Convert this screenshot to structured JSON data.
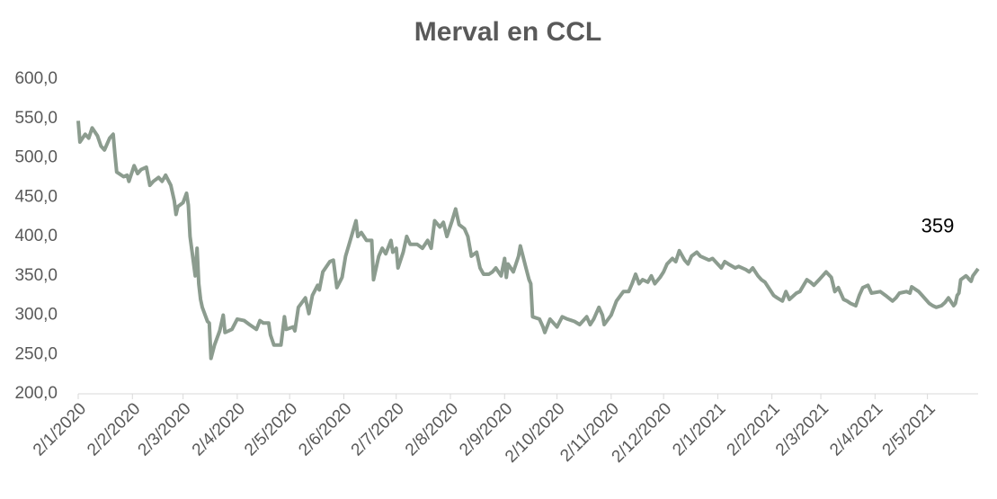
{
  "chart_data": {
    "type": "line",
    "title": "Merval en CCL",
    "x": [
      "2/1/2020",
      "3/1/2020",
      "6/1/2020",
      "8/1/2020",
      "10/1/2020",
      "13/1/2020",
      "15/1/2020",
      "17/1/2020",
      "20/1/2020",
      "22/1/2020",
      "23/1/2020",
      "24/1/2020",
      "28/1/2020",
      "30/1/2020",
      "31/1/2020",
      "3/2/2020",
      "5/2/2020",
      "7/2/2020",
      "10/2/2020",
      "12/2/2020",
      "14/2/2020",
      "17/2/2020",
      "19/2/2020",
      "21/2/2020",
      "24/2/2020",
      "26/2/2020",
      "27/2/2020",
      "28/2/2020",
      "2/3/2020",
      "4/3/2020",
      "5/3/2020",
      "6/3/2020",
      "9/3/2020",
      "10/3/2020",
      "11/3/2020",
      "12/3/2020",
      "13/3/2020",
      "16/3/2020",
      "17/3/2020",
      "18/3/2020",
      "20/3/2020",
      "23/3/2020",
      "25/3/2020",
      "26/3/2020",
      "30/3/2020",
      "2/4/2020",
      "6/4/2020",
      "9/4/2020",
      "13/4/2020",
      "15/4/2020",
      "17/4/2020",
      "20/4/2020",
      "21/4/2020",
      "23/4/2020",
      "27/4/2020",
      "29/4/2020",
      "30/4/2020",
      "4/5/2020",
      "5/5/2020",
      "7/5/2020",
      "11/5/2020",
      "13/5/2020",
      "15/5/2020",
      "18/5/2020",
      "19/5/2020",
      "21/5/2020",
      "25/5/2020",
      "27/5/2020",
      "29/5/2020",
      "1/6/2020",
      "3/6/2020",
      "5/6/2020",
      "9/6/2020",
      "10/6/2020",
      "12/6/2020",
      "15/6/2020",
      "18/6/2020",
      "19/6/2020",
      "22/6/2020",
      "24/6/2020",
      "26/6/2020",
      "29/6/2020",
      "30/6/2020",
      "2/7/2020",
      "3/7/2020",
      "6/7/2020",
      "8/7/2020",
      "10/7/2020",
      "14/7/2020",
      "17/7/2020",
      "20/7/2020",
      "22/7/2020",
      "24/7/2020",
      "27/7/2020",
      "29/7/2020",
      "31/7/2020",
      "3/8/2020",
      "5/8/2020",
      "7/8/2020",
      "10/8/2020",
      "12/8/2020",
      "14/8/2020",
      "17/8/2020",
      "19/8/2020",
      "21/8/2020",
      "24/8/2020",
      "26/8/2020",
      "28/8/2020",
      "31/8/2020",
      "2/9/2020",
      "3/9/2020",
      "4/9/2020",
      "7/9/2020",
      "10/9/2020",
      "11/9/2020",
      "14/9/2020",
      "16/9/2020",
      "17/9/2020",
      "18/9/2020",
      "22/9/2020",
      "24/9/2020",
      "25/9/2020",
      "28/9/2020",
      "30/9/2020",
      "2/10/2020",
      "5/10/2020",
      "8/10/2020",
      "12/10/2020",
      "15/10/2020",
      "19/10/2020",
      "21/10/2020",
      "23/10/2020",
      "26/10/2020",
      "28/10/2020",
      "29/10/2020",
      "2/11/2020",
      "5/11/2020",
      "9/11/2020",
      "12/11/2020",
      "14/11/2020",
      "16/11/2020",
      "18/11/2020",
      "20/11/2020",
      "23/11/2020",
      "25/11/2020",
      "27/11/2020",
      "30/11/2020",
      "2/12/2020",
      "4/12/2020",
      "7/12/2020",
      "9/12/2020",
      "11/12/2020",
      "14/12/2020",
      "16/12/2020",
      "18/12/2020",
      "21/12/2020",
      "23/12/2020",
      "28/12/2020",
      "30/12/2020",
      "4/1/2021",
      "6/1/2021",
      "8/1/2021",
      "12/1/2021",
      "14/1/2021",
      "18/1/2021",
      "20/1/2021",
      "22/1/2021",
      "25/1/2021",
      "27/1/2021",
      "29/1/2021",
      "3/2/2021",
      "5/2/2021",
      "8/2/2021",
      "10/2/2021",
      "12/2/2021",
      "16/2/2021",
      "18/2/2021",
      "22/2/2021",
      "24/2/2021",
      "26/2/2021",
      "1/3/2021",
      "3/3/2021",
      "5/3/2021",
      "8/3/2021",
      "10/3/2021",
      "12/3/2021",
      "15/3/2021",
      "17/3/2021",
      "19/3/2021",
      "22/3/2021",
      "24/3/2021",
      "26/3/2021",
      "29/3/2021",
      "31/3/2021",
      "5/4/2021",
      "8/4/2021",
      "12/4/2021",
      "14/4/2021",
      "16/4/2021",
      "20/4/2021",
      "22/4/2021",
      "23/4/2021",
      "27/4/2021",
      "29/4/2021",
      "3/5/2021",
      "5/5/2021",
      "7/5/2021",
      "10/5/2021",
      "12/5/2021",
      "14/5/2021",
      "17/5/2021",
      "18/5/2021",
      "19/5/2021",
      "20/5/2021",
      "21/5/2021",
      "24/5/2021",
      "25/5/2021",
      "26/5/2021",
      "27/5/2021",
      "28/5/2021",
      "31/5/2021"
    ],
    "series": [
      {
        "name": "Merval en CCL",
        "color": "#8c9c8f",
        "values": [
          547,
          520,
          530,
          525,
          538,
          528,
          515,
          510,
          525,
          530,
          505,
          482,
          476,
          478,
          470,
          490,
          480,
          485,
          488,
          465,
          470,
          475,
          470,
          478,
          465,
          445,
          428,
          438,
          443,
          455,
          440,
          400,
          350,
          385,
          340,
          320,
          310,
          292,
          290,
          245,
          262,
          280,
          300,
          278,
          282,
          295,
          293,
          288,
          282,
          293,
          290,
          290,
          275,
          262,
          262,
          298,
          282,
          285,
          280,
          310,
          322,
          302,
          325,
          338,
          332,
          355,
          368,
          370,
          335,
          348,
          375,
          390,
          420,
          400,
          405,
          395,
          395,
          345,
          375,
          385,
          378,
          395,
          380,
          385,
          360,
          380,
          400,
          390,
          390,
          385,
          395,
          385,
          420,
          412,
          418,
          400,
          420,
          435,
          415,
          410,
          400,
          375,
          380,
          360,
          352,
          352,
          355,
          360,
          350,
          372,
          348,
          365,
          355,
          375,
          388,
          362,
          345,
          340,
          298,
          295,
          285,
          278,
          295,
          290,
          285,
          298,
          295,
          292,
          288,
          298,
          288,
          295,
          310,
          300,
          288,
          300,
          318,
          330,
          330,
          340,
          352,
          340,
          345,
          342,
          350,
          340,
          348,
          355,
          365,
          372,
          368,
          382,
          370,
          365,
          375,
          380,
          375,
          370,
          372,
          360,
          368,
          365,
          360,
          362,
          358,
          355,
          360,
          350,
          345,
          342,
          325,
          322,
          318,
          330,
          320,
          328,
          330,
          345,
          342,
          338,
          345,
          350,
          355,
          348,
          330,
          335,
          320,
          318,
          315,
          312,
          325,
          335,
          338,
          328,
          330,
          325,
          318,
          322,
          328,
          330,
          328,
          336,
          330,
          325,
          315,
          312,
          310,
          312,
          316,
          322,
          312,
          315,
          325,
          328,
          345,
          350,
          348,
          345,
          343,
          350,
          359
        ]
      }
    ],
    "xlim": [
      "2/1/2020",
      "31/5/2021"
    ],
    "xticks": [
      "2/1/2020",
      "2/2/2020",
      "2/3/2020",
      "2/4/2020",
      "2/5/2020",
      "2/6/2020",
      "2/7/2020",
      "2/8/2020",
      "2/9/2020",
      "2/10/2020",
      "2/11/2020",
      "2/12/2020",
      "2/1/2021",
      "2/2/2021",
      "2/3/2021",
      "2/4/2021",
      "2/5/2021"
    ],
    "ylim": [
      200,
      600
    ],
    "yticks": [
      {
        "value": 200,
        "label": "200,0"
      },
      {
        "value": 250,
        "label": "250,0"
      },
      {
        "value": 300,
        "label": "300,0"
      },
      {
        "value": 350,
        "label": "350,0"
      },
      {
        "value": 400,
        "label": "400,0"
      },
      {
        "value": 450,
        "label": "450,0"
      },
      {
        "value": 500,
        "label": "500,0"
      },
      {
        "value": 550,
        "label": "550,0"
      },
      {
        "value": 600,
        "label": "600,0"
      }
    ],
    "grid": false
  }
}
